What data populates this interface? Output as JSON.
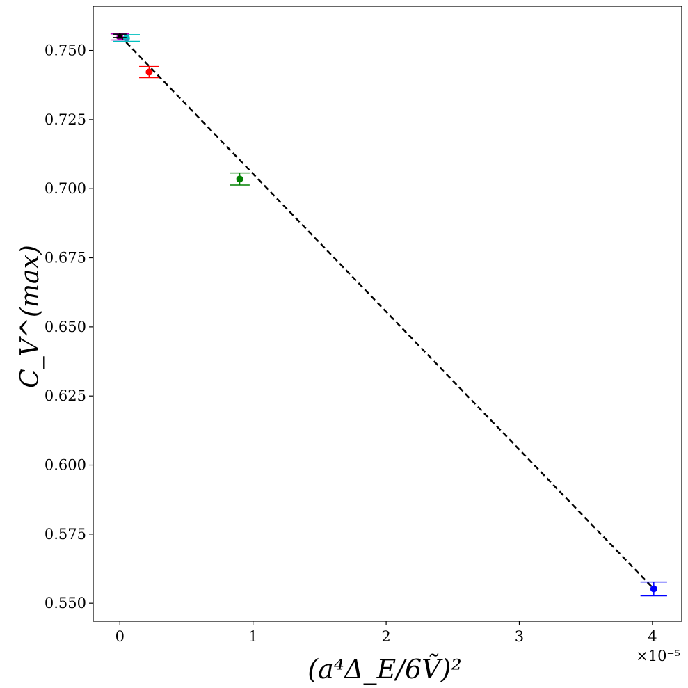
{
  "chart_data": {
    "type": "scatter",
    "title": "",
    "xlabel": "(a⁴Δ_E/6Ṽ)²",
    "ylabel": "C_V^(max)",
    "x_multiplier_label": "×10⁻⁵",
    "x_scale": 1e-05,
    "xlim": [
      -0.2,
      4.22
    ],
    "ylim": [
      0.5435,
      0.766
    ],
    "xticks": [
      0,
      1,
      2,
      3,
      4
    ],
    "xtick_labels": [
      "0",
      "1",
      "2",
      "3",
      "4"
    ],
    "yticks": [
      0.55,
      0.575,
      0.6,
      0.625,
      0.65,
      0.675,
      0.7,
      0.725,
      0.75
    ],
    "ytick_labels": [
      "0.550",
      "0.575",
      "0.600",
      "0.625",
      "0.650",
      "0.675",
      "0.700",
      "0.725",
      "0.750"
    ],
    "grid": false,
    "legend": "none",
    "series": [
      {
        "color": "#0000ff",
        "marker": "circle",
        "x": [
          4.01
        ],
        "y": [
          0.5552
        ],
        "xerr": [
          0.1
        ],
        "yerr": [
          0.0025
        ]
      },
      {
        "color": "#008000",
        "marker": "circle",
        "x": [
          0.9
        ],
        "y": [
          0.7035
        ],
        "xerr": [
          0.075
        ],
        "yerr": [
          0.0022
        ]
      },
      {
        "color": "#ff0000",
        "marker": "circle",
        "x": [
          0.22
        ],
        "y": [
          0.7422
        ],
        "xerr": [
          0.075
        ],
        "yerr": [
          0.002
        ]
      },
      {
        "color": "#00bfbf",
        "marker": "circle",
        "x": [
          0.05
        ],
        "y": [
          0.7545
        ],
        "xerr": [
          0.1
        ],
        "yerr": [
          0.0012
        ]
      },
      {
        "color": "#bf00bf",
        "marker": "circle",
        "x": [
          0.0
        ],
        "y": [
          0.7549
        ],
        "xerr": [
          0.07
        ],
        "yerr": [
          0.0011
        ]
      },
      {
        "color": "#000000",
        "marker": "triangle",
        "x": [
          0.0
        ],
        "y": [
          0.7553
        ],
        "xerr": [
          0.05
        ],
        "yerr": [
          0.0006
        ]
      }
    ],
    "fit_line": {
      "color": "#000000",
      "style": "dashed",
      "x": [
        0.0,
        4.01
      ],
      "y": [
        0.7553,
        0.5552
      ]
    }
  }
}
